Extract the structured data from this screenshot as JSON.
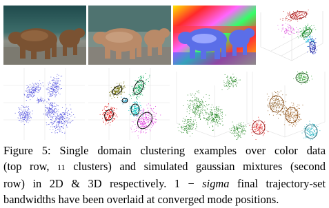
{
  "caption": {
    "lines": [
      [
        "Figure 5: Single domain clustering examples over color data"
      ],
      [
        "(top row, ",
        "11",
        " clusters) and simulated gaussian mixtures (second"
      ],
      [
        "row) in 2D & 3D respectively.  1 − ",
        "sigma",
        " final trajectory-set"
      ],
      [
        "bandwidths have been overlaid at converged mode positions."
      ]
    ]
  }
}
